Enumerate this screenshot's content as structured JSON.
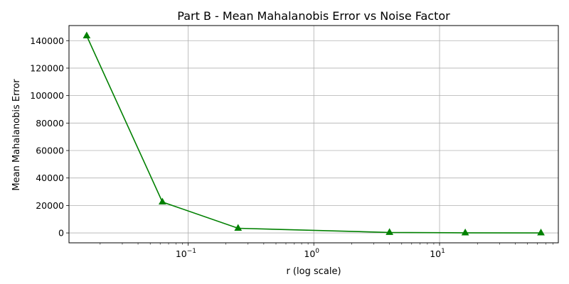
{
  "chart_data": {
    "type": "line",
    "title": "Part B - Mean Mahalanobis Error vs Noise Factor",
    "xlabel": "r (log scale)",
    "ylabel": "Mean Mahalanobis Error",
    "x_scale": "log",
    "grid": true,
    "series": [
      {
        "color": "#008000",
        "marker": "triangle",
        "x": [
          0.015625,
          0.0625,
          0.25,
          4,
          16,
          64
        ],
        "y": [
          143500,
          22500,
          3400,
          350,
          60,
          10
        ]
      }
    ],
    "x_ticks": [
      {
        "value": 0.1,
        "base": "10",
        "exp": "−1"
      },
      {
        "value": 1,
        "base": "10",
        "exp": "0"
      },
      {
        "value": 10,
        "base": "10",
        "exp": "1"
      }
    ],
    "y_ticks": [
      {
        "value": 0,
        "label": "0"
      },
      {
        "value": 20000,
        "label": "20000"
      },
      {
        "value": 40000,
        "label": "40000"
      },
      {
        "value": 60000,
        "label": "60000"
      },
      {
        "value": 80000,
        "label": "80000"
      },
      {
        "value": 100000,
        "label": "100000"
      },
      {
        "value": 120000,
        "label": "120000"
      },
      {
        "value": 140000,
        "label": "140000"
      }
    ],
    "xlim": [
      0.0113,
      88
    ],
    "ylim": [
      -7200,
      151000
    ]
  }
}
